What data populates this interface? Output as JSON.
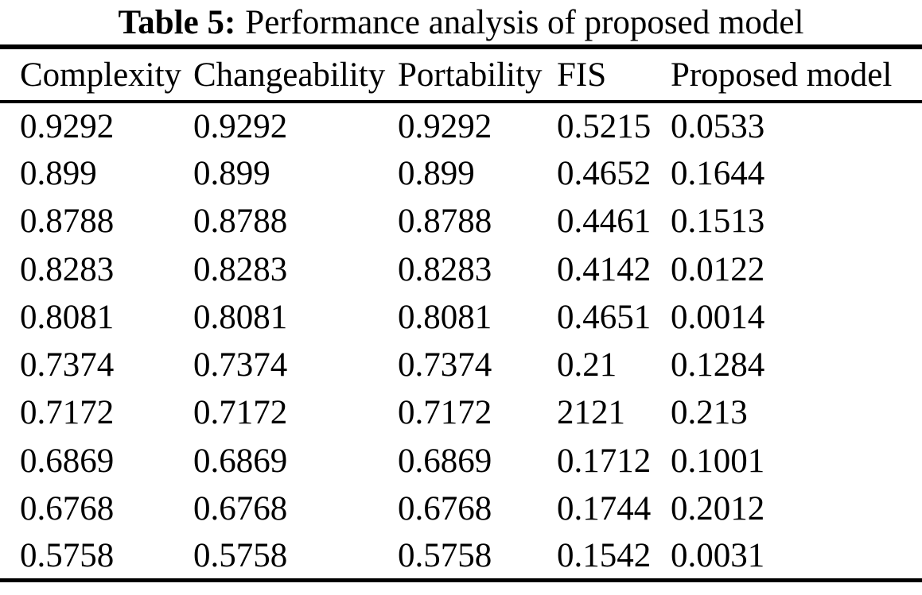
{
  "caption": {
    "label": "Table 5:",
    "text": "Performance analysis of proposed model"
  },
  "chart_data": {
    "type": "table",
    "title": "Table 5: Performance analysis of proposed model",
    "columns": [
      "Complexity",
      "Changeability",
      "Portability",
      "FIS",
      "Proposed model"
    ],
    "rows": [
      [
        "0.9292",
        "0.9292",
        "0.9292",
        "0.5215",
        "0.0533"
      ],
      [
        "0.899",
        "0.899",
        "0.899",
        "0.4652",
        "0.1644"
      ],
      [
        "0.8788",
        "0.8788",
        "0.8788",
        "0.4461",
        "0.1513"
      ],
      [
        "0.8283",
        "0.8283",
        "0.8283",
        "0.4142",
        "0.0122"
      ],
      [
        "0.8081",
        "0.8081",
        "0.8081",
        "0.4651",
        "0.0014"
      ],
      [
        "0.7374",
        "0.7374",
        "0.7374",
        "0.21",
        "0.1284"
      ],
      [
        "0.7172",
        "0.7172",
        "0.7172",
        "2121",
        "0.213"
      ],
      [
        "0.6869",
        "0.6869",
        "0.6869",
        "0.1712",
        "0.1001"
      ],
      [
        "0.6768",
        "0.6768",
        "0.6768",
        "0.1744",
        "0.2012"
      ],
      [
        "0.5758",
        "0.5758",
        "0.5758",
        "0.1542",
        "0.0031"
      ]
    ]
  },
  "colors": {
    "text": "#000000",
    "background": "#ffffff",
    "rule": "#000000"
  }
}
